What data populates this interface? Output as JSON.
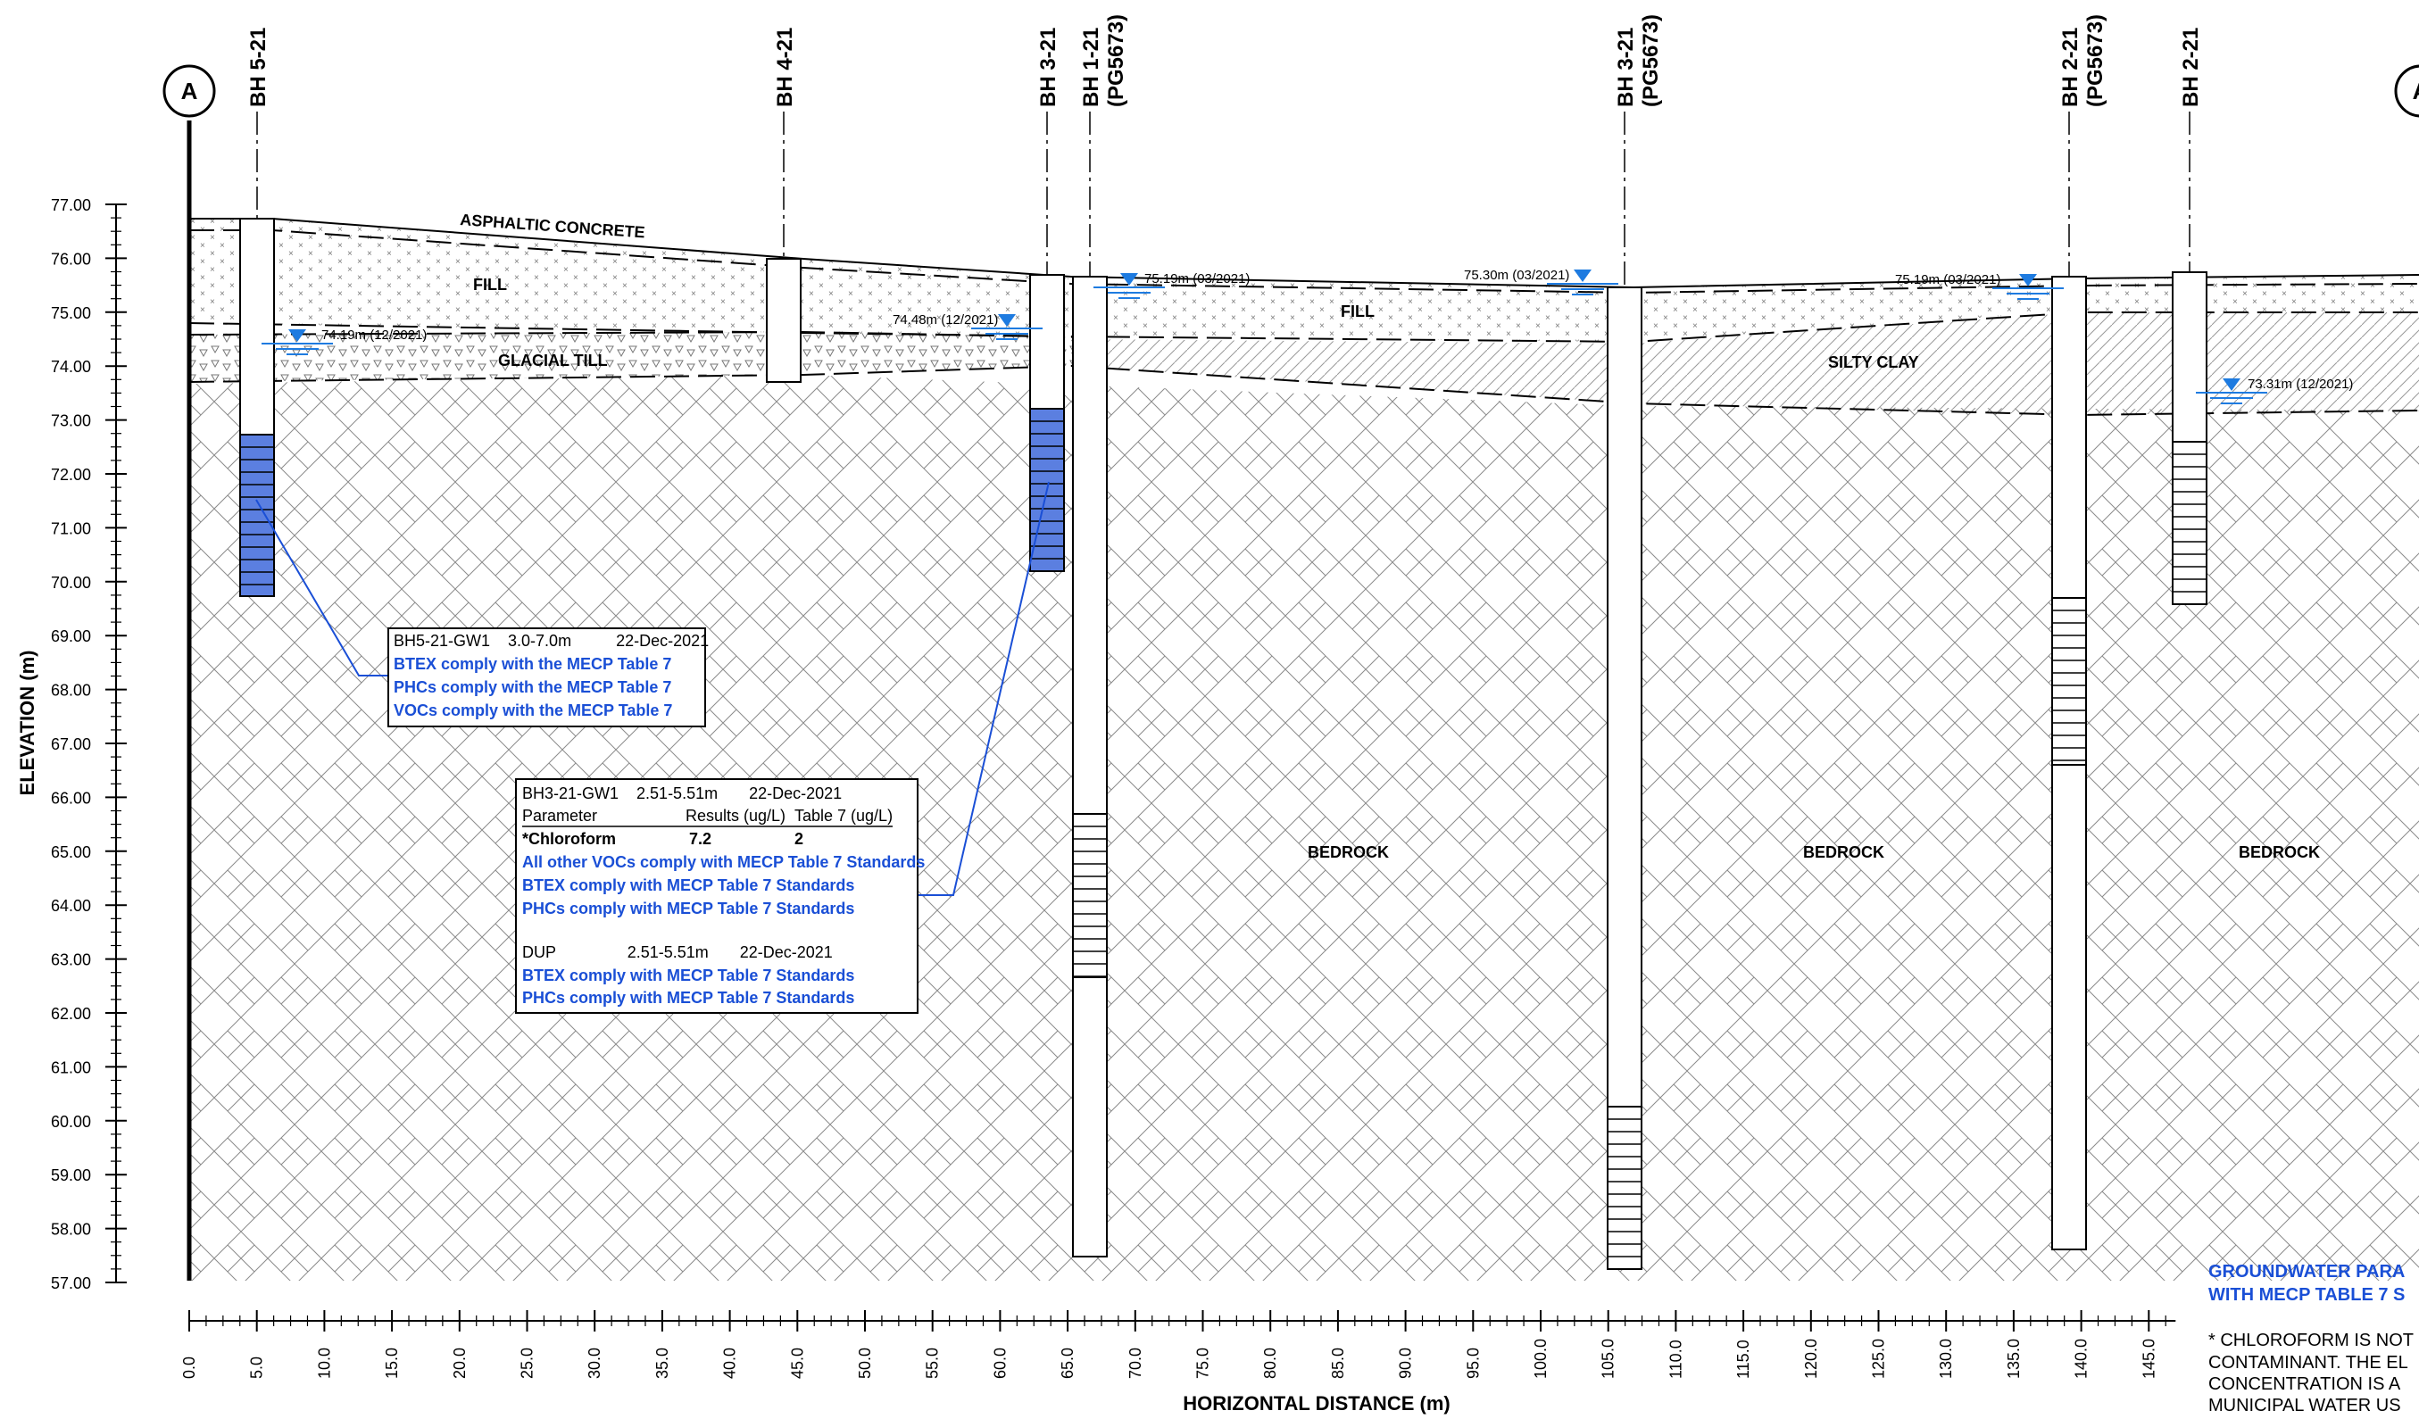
{
  "section": {
    "marker_left": "A",
    "marker_right": "A",
    "y_axis_label": "ELEVATION (m)",
    "x_axis_label": "HORIZONTAL DISTANCE (m)",
    "y_ticks": [
      "77.00",
      "76.00",
      "75.00",
      "74.00",
      "73.00",
      "72.00",
      "71.00",
      "70.00",
      "69.00",
      "68.00",
      "67.00",
      "66.00",
      "65.00",
      "64.00",
      "63.00",
      "62.00",
      "61.00",
      "60.00",
      "59.00",
      "58.00",
      "57.00"
    ],
    "x_ticks": [
      "0.0",
      "5.0",
      "10.0",
      "15.0",
      "20.0",
      "25.0",
      "30.0",
      "35.0",
      "40.0",
      "45.0",
      "50.0",
      "55.0",
      "60.0",
      "65.0",
      "70.0",
      "75.0",
      "80.0",
      "85.0",
      "90.0",
      "95.0",
      "100.0",
      "105.0",
      "110.0",
      "115.0",
      "120.0",
      "125.0",
      "130.0",
      "135.0",
      "140.0",
      "145.0"
    ]
  },
  "boreholes": [
    {
      "line1": "BH 5-21",
      "line2": ""
    },
    {
      "line1": "BH 4-21",
      "line2": ""
    },
    {
      "line1": "BH 3-21",
      "line2": ""
    },
    {
      "line1": "BH 1-21",
      "line2": "(PG5673)"
    },
    {
      "line1": "BH 3-21",
      "line2": "(PG5673)"
    },
    {
      "line1": "BH 2-21",
      "line2": "(PG5673)"
    },
    {
      "line1": "BH 2-21",
      "line2": ""
    }
  ],
  "layers": {
    "asphalt": "ASPHALTIC CONCRETE",
    "fill_1": "FILL",
    "fill_2": "FILL",
    "glacial_till": "GLACIAL TILL",
    "silty_clay": "SILTY CLAY",
    "bedrock_1": "BEDROCK",
    "bedrock_2": "BEDROCK",
    "bedrock_3": "BEDROCK"
  },
  "water_levels": [
    "74.19m (12/2021)",
    "74.48m (12/2021)",
    "75.19m (03/2021)",
    "75.30m (03/2021)",
    "75.19m (03/2021)",
    "73.31m (12/2021)"
  ],
  "box1": {
    "line1": "BH5-21-GW1    3.0-7.0m          22-Dec-2021",
    "line2": "BTEX comply with the MECP Table 7",
    "line3": "PHCs comply with the MECP Table 7",
    "line4": "VOCs comply with the MECP Table 7"
  },
  "box2": {
    "header": "BH3-21-GW1    2.51-5.51m       22-Dec-2021",
    "col_param": "Parameter",
    "col_results": "Results (ug/L)",
    "col_table7": "Table 7 (ug/L)",
    "row_param": "*Chloroform",
    "row_result": "7.2",
    "row_table7": "2",
    "line_a": "All other VOCs comply with MECP Table 7 Standards",
    "line_b": "BTEX comply with MECP Table 7 Standards",
    "line_c": "PHCs comply with MECP Table 7 Standards",
    "dup_header": "DUP                2.51-5.51m       22-Dec-2021",
    "dup_a": "BTEX comply with MECP Table 7 Standards",
    "dup_b": "PHCs comply with MECP Table 7 Standards"
  },
  "notes": {
    "gw_line1": "GROUNDWATER PARA",
    "gw_line2": "WITH MECP TABLE 7 S",
    "note_line1": "* CHLOROFORM IS NOT",
    "note_line2": "CONTAMINANT. THE EL",
    "note_line3": "CONCENTRATION IS A",
    "note_line4": "MUNICIPAL WATER US"
  }
}
